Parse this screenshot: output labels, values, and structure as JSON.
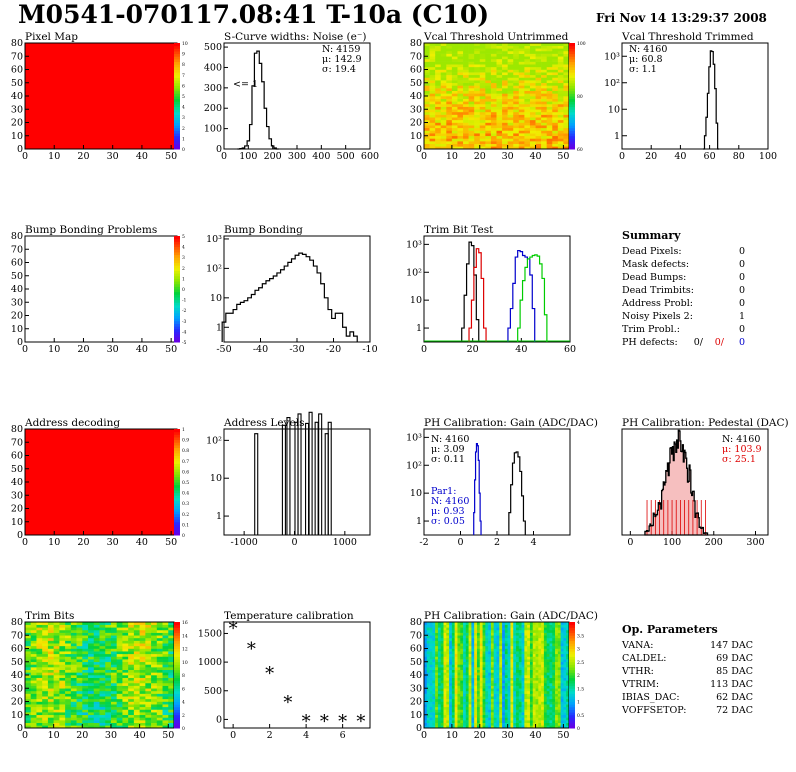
{
  "header": {
    "title": "M0541-070117.08:41 T-10a (C10)",
    "date": "Fri Nov 14 13:29:37 2008"
  },
  "panels": {
    "pixel_map": {
      "title": "Pixel Map",
      "xticks": [
        "0",
        "10",
        "20",
        "30",
        "40",
        "50"
      ],
      "yticks": [
        "0",
        "10",
        "20",
        "30",
        "40",
        "50",
        "60",
        "70",
        "80"
      ],
      "zticks": [
        "0",
        "1",
        "2",
        "3",
        "4",
        "5",
        "6",
        "7",
        "8",
        "9",
        "10"
      ]
    },
    "scurve": {
      "title": "S-Curve widths: Noise (e⁻)",
      "xticks": [
        "0",
        "100",
        "200",
        "300",
        "400",
        "500",
        "600"
      ],
      "yticks": [
        "0",
        "100",
        "200",
        "300",
        "400",
        "500"
      ],
      "stats": [
        "N: 4159",
        "μ: 142.9",
        "σ: 19.4"
      ],
      "annotation": "<= 1"
    },
    "vcal_untrimmed": {
      "title": "Vcal Threshold Untrimmed",
      "xticks": [
        "0",
        "10",
        "20",
        "30",
        "40",
        "50"
      ],
      "yticks": [
        "0",
        "10",
        "20",
        "30",
        "40",
        "50",
        "60",
        "70",
        "80"
      ],
      "zticks": [
        "60",
        "80",
        "100"
      ]
    },
    "vcal_trimmed": {
      "title": "Vcal Threshold Trimmed",
      "xticks": [
        "0",
        "20",
        "40",
        "60",
        "80",
        "100"
      ],
      "yticks": [
        "1",
        "10",
        "10²",
        "10³"
      ],
      "stats": [
        "N: 4160",
        "μ: 60.8",
        "σ:  1.1"
      ]
    },
    "bump_problems": {
      "title": "Bump Bonding Problems",
      "xticks": [
        "0",
        "10",
        "20",
        "30",
        "40",
        "50"
      ],
      "yticks": [
        "0",
        "10",
        "20",
        "30",
        "40",
        "50",
        "60",
        "70",
        "80"
      ],
      "zticks": [
        "-5",
        "-4",
        "-3",
        "-2",
        "-1",
        "0",
        "1",
        "2",
        "3",
        "4",
        "5"
      ]
    },
    "bump_bonding": {
      "title": "Bump Bonding",
      "xticks": [
        "-50",
        "-40",
        "-30",
        "-20",
        "-10"
      ],
      "yticks": [
        "1",
        "10",
        "10²",
        "10³"
      ]
    },
    "trim_bit": {
      "title": "Trim Bit Test",
      "xticks": [
        "0",
        "20",
        "40",
        "60"
      ],
      "yticks": [
        "1",
        "10",
        "10²",
        "10³"
      ]
    },
    "summary": {
      "title": "Summary",
      "rows": [
        {
          "label": "Dead Pixels:",
          "value": "0"
        },
        {
          "label": "Mask defects:",
          "value": "0"
        },
        {
          "label": "Dead Bumps:",
          "value": "0"
        },
        {
          "label": "Dead Trimbits:",
          "value": "0"
        },
        {
          "label": "Address Probl:",
          "value": "0"
        },
        {
          "label": "Noisy Pixels 2:",
          "value": "1"
        },
        {
          "label": "Trim Probl.:",
          "value": "0"
        }
      ],
      "ph_label": "PH defects:",
      "ph_values": [
        "0/",
        "0/",
        "0"
      ],
      "ph_colors": [
        "#000000",
        "#dd0000",
        "#0000cc"
      ]
    },
    "address_decoding": {
      "title": "Address decoding",
      "xticks": [
        "0",
        "10",
        "20",
        "30",
        "40",
        "50"
      ],
      "yticks": [
        "0",
        "10",
        "20",
        "30",
        "40",
        "50",
        "60",
        "70",
        "80"
      ],
      "zticks": [
        "0",
        "0.1",
        "0.2",
        "0.3",
        "0.4",
        "0.5",
        "0.6",
        "0.7",
        "0.8",
        "0.9",
        "1"
      ]
    },
    "address_levels": {
      "title": "Address Levels",
      "xticks": [
        "-1000",
        "0",
        "1000"
      ],
      "yticks": [
        "1",
        "10",
        "10²"
      ]
    },
    "ph_gain": {
      "title": "PH Calibration: Gain (ADC/DAC)",
      "xticks": [
        "-2",
        "0",
        "2",
        "4"
      ],
      "yticks": [
        "1",
        "10",
        "10²",
        "10³"
      ],
      "stats": [
        "N: 4160",
        "μ: 3.09",
        "σ: 0.11"
      ],
      "par1": [
        "Par1:",
        "N: 4160",
        "μ: 0.93",
        "σ: 0.05"
      ]
    },
    "ph_pedestal": {
      "title": "PH Calibration: Pedestal (DAC)",
      "xticks": [
        "0",
        "100",
        "200",
        "300"
      ],
      "stats": [
        "N: 4160",
        "μ: 103.9",
        "σ: 25.1"
      ]
    },
    "trim_bits": {
      "title": "Trim Bits",
      "xticks": [
        "0",
        "10",
        "20",
        "30",
        "40",
        "50"
      ],
      "yticks": [
        "0",
        "10",
        "20",
        "30",
        "40",
        "50",
        "60",
        "70",
        "80"
      ],
      "zticks": [
        "0",
        "2",
        "4",
        "6",
        "8",
        "10",
        "12",
        "14",
        "16"
      ]
    },
    "temperature": {
      "title": "Temperature calibration",
      "xticks": [
        "0",
        "2",
        "4",
        "6"
      ],
      "yticks": [
        "0",
        "500",
        "1000",
        "1500"
      ]
    },
    "ph_gain_map": {
      "title": "PH Calibration: Gain (ADC/DAC)",
      "xticks": [
        "0",
        "10",
        "20",
        "30",
        "40",
        "50"
      ],
      "yticks": [
        "0",
        "10",
        "20",
        "30",
        "40",
        "50",
        "60",
        "70",
        "80"
      ],
      "zticks": [
        "0",
        "0.5",
        "1",
        "1.5",
        "2",
        "2.5",
        "3",
        "3.5",
        "4"
      ]
    },
    "op_params": {
      "title": "Op. Parameters",
      "rows": [
        {
          "label": "VANA:",
          "value": "147 DAC"
        },
        {
          "label": "CALDEL:",
          "value": "69 DAC"
        },
        {
          "label": "VTHR:",
          "value": "85 DAC"
        },
        {
          "label": "VTRIM:",
          "value": "113 DAC"
        },
        {
          "label": "IBIAS_DAC:",
          "value": "62 DAC"
        },
        {
          "label": "VOFFSETOP:",
          "value": "72 DAC"
        }
      ]
    }
  },
  "chart_data": [
    {
      "type": "heatmap",
      "title": "Pixel Map",
      "xlim": [
        0,
        52
      ],
      "ylim": [
        0,
        80
      ],
      "zlim": [
        0,
        10
      ],
      "uniform_value": 10
    },
    {
      "type": "bar",
      "title": "S-Curve widths: Noise (e⁻)",
      "x": [
        60,
        70,
        80,
        90,
        100,
        110,
        120,
        130,
        140,
        150,
        160,
        170,
        180,
        190,
        200,
        210,
        220
      ],
      "values": [
        0,
        2,
        5,
        15,
        40,
        120,
        310,
        470,
        480,
        420,
        330,
        200,
        110,
        50,
        15,
        5,
        0
      ],
      "xlim": [
        0,
        600
      ],
      "ylim": [
        0,
        520
      ],
      "stats": {
        "N": 4159,
        "mean": 142.9,
        "rms": 19.4
      }
    },
    {
      "type": "heatmap",
      "title": "Vcal Threshold Untrimmed",
      "xlim": [
        0,
        52
      ],
      "ylim": [
        0,
        80
      ],
      "zlim": [
        55,
        115
      ]
    },
    {
      "type": "bar",
      "title": "Vcal Threshold Trimmed",
      "x": [
        56,
        57,
        58,
        59,
        60,
        61,
        62,
        63,
        64,
        65,
        66
      ],
      "values": [
        0,
        1,
        5,
        40,
        400,
        1600,
        1500,
        500,
        60,
        3,
        0
      ],
      "xlim": [
        0,
        100
      ],
      "log_y": true,
      "stats": {
        "N": 4160,
        "mean": 60.8,
        "rms": 1.1
      }
    },
    {
      "type": "heatmap",
      "title": "Bump Bonding Problems",
      "xlim": [
        0,
        52
      ],
      "ylim": [
        0,
        80
      ],
      "zlim": [
        -5,
        5
      ],
      "empty": true
    },
    {
      "type": "bar",
      "title": "Bump Bonding",
      "x": [
        -50,
        -49,
        -48,
        -47,
        -46,
        -45,
        -44,
        -43,
        -42,
        -41,
        -40,
        -39,
        -38,
        -37,
        -36,
        -35,
        -34,
        -33,
        -32,
        -31,
        -30,
        -29,
        -28,
        -27,
        -26,
        -25,
        -24,
        -23,
        -22,
        -21,
        -20,
        -19,
        -18,
        -17,
        -16,
        -15,
        -14
      ],
      "values": [
        1.5,
        3,
        3,
        4,
        6,
        7,
        8,
        10,
        13,
        18,
        22,
        30,
        38,
        45,
        55,
        70,
        90,
        120,
        160,
        210,
        280,
        330,
        300,
        250,
        190,
        120,
        70,
        30,
        10,
        4,
        2,
        3,
        3,
        1,
        0.5,
        0.7,
        0.5
      ],
      "xlim": [
        -50,
        -10
      ],
      "log_y": true
    },
    {
      "type": "bar",
      "title": "Trim Bit Test",
      "series": [
        {
          "name": "black",
          "x": [
            16,
            17,
            18,
            19,
            20,
            21,
            22
          ],
          "values": [
            1,
            15,
            200,
            1200,
            900,
            80,
            2
          ]
        },
        {
          "name": "red",
          "x": [
            19,
            20,
            21,
            22,
            23,
            24,
            25
          ],
          "values": [
            1,
            10,
            150,
            700,
            500,
            60,
            1
          ]
        },
        {
          "name": "blue",
          "x": [
            35,
            36,
            37,
            38,
            39,
            40,
            41,
            42,
            43,
            44,
            45
          ],
          "values": [
            1,
            5,
            40,
            350,
            600,
            550,
            400,
            350,
            300,
            80,
            5
          ]
        },
        {
          "name": "green",
          "x": [
            39,
            40,
            41,
            42,
            43,
            44,
            45,
            46,
            47,
            48,
            49,
            50
          ],
          "values": [
            1,
            10,
            50,
            150,
            300,
            350,
            400,
            420,
            380,
            200,
            60,
            3
          ]
        }
      ],
      "xlim": [
        0,
        60
      ],
      "log_y": true
    },
    {
      "type": "heatmap",
      "title": "Address decoding",
      "xlim": [
        0,
        52
      ],
      "ylim": [
        0,
        80
      ],
      "zlim": [
        0,
        1
      ],
      "uniform_value": 1
    },
    {
      "type": "bar",
      "title": "Address Levels",
      "x": [
        -760,
        -210,
        -120,
        40,
        100,
        250,
        320,
        440,
        510,
        640,
        700
      ],
      "values": [
        150,
        250,
        400,
        300,
        500,
        280,
        550,
        300,
        500,
        150,
        300
      ],
      "xlim": [
        -1400,
        1500
      ],
      "log_y": true
    },
    {
      "type": "bar",
      "title": "PH Calibration: Gain (ADC/DAC)",
      "series": [
        {
          "name": "gain",
          "x": [
            2.7,
            2.8,
            2.9,
            3.0,
            3.1,
            3.2,
            3.3,
            3.4,
            3.5
          ],
          "values": [
            2,
            20,
            120,
            280,
            300,
            200,
            60,
            8,
            1
          ]
        },
        {
          "name": "Par1",
          "x": [
            0.75,
            0.8,
            0.85,
            0.9,
            0.95,
            1.0,
            1.05,
            1.1
          ],
          "values": [
            2,
            30,
            300,
            600,
            500,
            150,
            10,
            1
          ]
        }
      ],
      "xlim": [
        -2,
        6
      ],
      "log_y": true,
      "stats": {
        "N": 4160,
        "mean": 3.09,
        "rms": 0.11
      },
      "par1_stats": {
        "N": 4160,
        "mean": 0.93,
        "rms": 0.05
      }
    },
    {
      "type": "bar",
      "title": "PH Calibration: Pedestal (DAC)",
      "x": [
        40,
        50,
        60,
        70,
        80,
        90,
        100,
        110,
        120,
        130,
        140,
        150,
        160,
        170,
        180
      ],
      "values": [
        2,
        5,
        10,
        15,
        25,
        35,
        45,
        50,
        48,
        42,
        32,
        20,
        10,
        4,
        1
      ],
      "xlim": [
        -20,
        330
      ],
      "stats": {
        "N": 4160,
        "mean": 103.9,
        "rms": 25.1
      }
    },
    {
      "type": "heatmap",
      "title": "Trim Bits",
      "xlim": [
        0,
        52
      ],
      "ylim": [
        0,
        80
      ],
      "zlim": [
        0,
        16
      ]
    },
    {
      "type": "scatter",
      "title": "Temperature calibration",
      "x": [
        0,
        1,
        2,
        3,
        4,
        5,
        6,
        7
      ],
      "y": [
        1600,
        1250,
        820,
        310,
        -20,
        -20,
        -20,
        -20
      ],
      "xlim": [
        -0.5,
        7.5
      ],
      "ylim": [
        -150,
        1700
      ]
    },
    {
      "type": "heatmap",
      "title": "PH Calibration: Gain (ADC/DAC)",
      "xlim": [
        0,
        52
      ],
      "ylim": [
        0,
        80
      ],
      "zlim": [
        0,
        4
      ]
    }
  ]
}
